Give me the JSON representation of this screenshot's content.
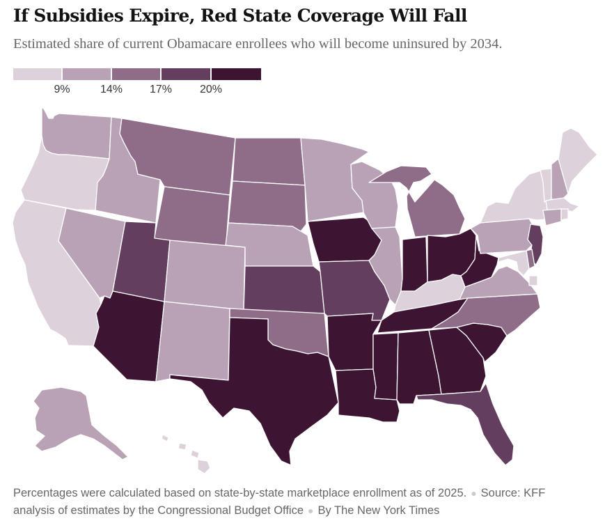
{
  "header": {
    "title": "If Subsidies Expire, Red State Coverage Will Fall",
    "subtitle": "Estimated share of current Obamacare enrollees who will become uninsured by 2034."
  },
  "legend": {
    "colors": [
      "#ddd2dc",
      "#b9a2b6",
      "#8f6c88",
      "#643e5e",
      "#3e1433"
    ],
    "ticks": [
      "9%",
      "14%",
      "17%",
      "20%"
    ]
  },
  "footer": {
    "note": "Percentages were calculated based on state-by-state marketplace enrollment as of 2025.",
    "source_a": "Source: KFF",
    "source_b": "analysis of estimates by the Congressional Budget Office",
    "credit": "By The New York Times"
  },
  "map": {
    "type": "choropleth",
    "bins": [
      "under 9%",
      "9% to 14%",
      "14% to 17%",
      "17% to 20%",
      "20% or more"
    ],
    "states": [
      {
        "id": "WA",
        "bin": 1
      },
      {
        "id": "OR",
        "bin": 0
      },
      {
        "id": "CA",
        "bin": 0
      },
      {
        "id": "NV",
        "bin": 1
      },
      {
        "id": "ID",
        "bin": 1
      },
      {
        "id": "MT",
        "bin": 2
      },
      {
        "id": "WY",
        "bin": 2
      },
      {
        "id": "UT",
        "bin": 3
      },
      {
        "id": "AZ",
        "bin": 4
      },
      {
        "id": "CO",
        "bin": 1
      },
      {
        "id": "NM",
        "bin": 1
      },
      {
        "id": "ND",
        "bin": 2
      },
      {
        "id": "SD",
        "bin": 2
      },
      {
        "id": "NE",
        "bin": 1
      },
      {
        "id": "KS",
        "bin": 3
      },
      {
        "id": "OK",
        "bin": 2
      },
      {
        "id": "TX",
        "bin": 4
      },
      {
        "id": "MN",
        "bin": 1
      },
      {
        "id": "IA",
        "bin": 4
      },
      {
        "id": "MO",
        "bin": 3
      },
      {
        "id": "AR",
        "bin": 4
      },
      {
        "id": "LA",
        "bin": 4
      },
      {
        "id": "WI",
        "bin": 1
      },
      {
        "id": "IL",
        "bin": 1
      },
      {
        "id": "MI",
        "bin": 2
      },
      {
        "id": "IN",
        "bin": 4
      },
      {
        "id": "OH",
        "bin": 4
      },
      {
        "id": "KY",
        "bin": 0
      },
      {
        "id": "TN",
        "bin": 4
      },
      {
        "id": "MS",
        "bin": 4
      },
      {
        "id": "AL",
        "bin": 4
      },
      {
        "id": "GA",
        "bin": 4
      },
      {
        "id": "FL",
        "bin": 3
      },
      {
        "id": "SC",
        "bin": 4
      },
      {
        "id": "NC",
        "bin": 2
      },
      {
        "id": "VA",
        "bin": 1
      },
      {
        "id": "WV",
        "bin": 4
      },
      {
        "id": "PA",
        "bin": 1
      },
      {
        "id": "NY",
        "bin": 0
      },
      {
        "id": "NJ",
        "bin": 3
      },
      {
        "id": "DE",
        "bin": 2
      },
      {
        "id": "MD",
        "bin": 0
      },
      {
        "id": "DC",
        "bin": 0
      },
      {
        "id": "VT",
        "bin": 0
      },
      {
        "id": "NH",
        "bin": 1
      },
      {
        "id": "ME",
        "bin": 0
      },
      {
        "id": "MA",
        "bin": 0
      },
      {
        "id": "CT",
        "bin": 1
      },
      {
        "id": "RI",
        "bin": 0
      },
      {
        "id": "AK",
        "bin": 1
      },
      {
        "id": "HI",
        "bin": 0
      }
    ]
  }
}
